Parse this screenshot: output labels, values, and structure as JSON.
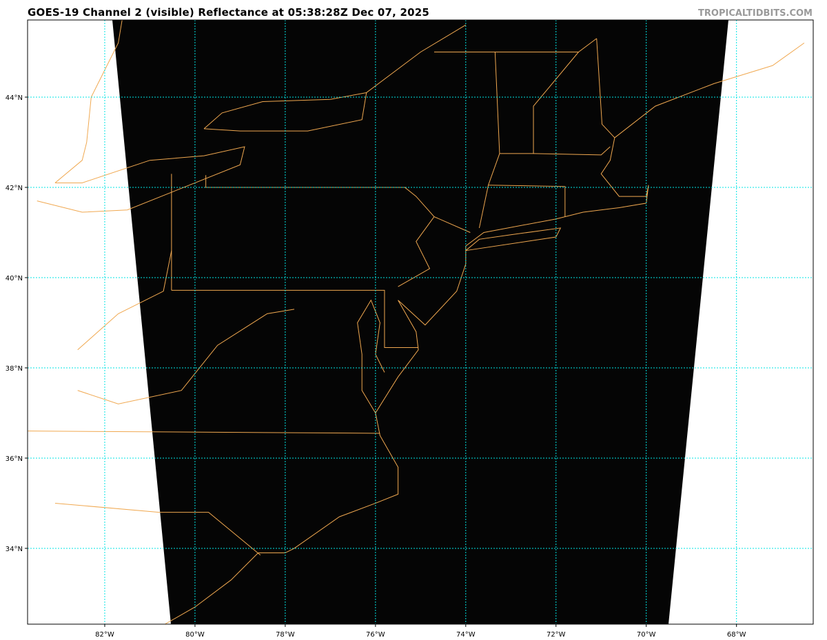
{
  "header": {
    "title": "GOES-19 Channel 2 (visible) Reflectance at 05:38:28Z Dec 07, 2025",
    "brand": "TROPICALTIDBITS.COM"
  },
  "map": {
    "extent": {
      "lon": [
        -83.71,
        -66.3
      ],
      "lat": [
        32.32,
        45.71
      ]
    },
    "lon_ticks": [
      "82°W",
      "80°W",
      "78°W",
      "76°W",
      "74°W",
      "72°W",
      "70°W",
      "68°W"
    ],
    "lon_values": [
      -82,
      -80,
      -78,
      -76,
      -74,
      -72,
      -70,
      -68
    ],
    "lat_ticks": [
      "44°N",
      "42°N",
      "40°N",
      "38°N",
      "36°N",
      "34°N"
    ],
    "lat_values": [
      44,
      42,
      40,
      38,
      36,
      34
    ],
    "colors": {
      "grid": "#00e5e5",
      "coastline": "#f0a850",
      "imagery": "#050505",
      "background": "#ffffff"
    }
  }
}
